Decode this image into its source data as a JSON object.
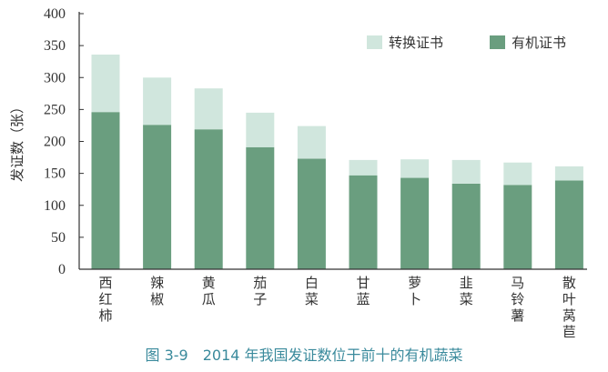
{
  "chart_data": {
    "type": "bar",
    "stacked": true,
    "title": "图 3-9　2014 年我国发证数位于前十的有机蔬菜",
    "xlabel": "",
    "ylabel": "发证数（张）",
    "ylim": [
      0,
      400
    ],
    "yticks": [
      0,
      50,
      100,
      150,
      200,
      250,
      300,
      350,
      400
    ],
    "grid": false,
    "legend_position": "top-right",
    "categories": [
      "西红柿",
      "辣椒",
      "黄瓜",
      "茄子",
      "白菜",
      "甘蓝",
      "萝卜",
      "韭菜",
      "马铃薯",
      "散叶莴苣"
    ],
    "series": [
      {
        "name": "有机证书",
        "color": "#6a9e7f",
        "values": [
          246,
          226,
          219,
          191,
          173,
          147,
          143,
          134,
          132,
          139
        ]
      },
      {
        "name": "转换证书",
        "color": "#d0e6dd",
        "values": [
          90,
          74,
          64,
          54,
          51,
          24,
          29,
          37,
          35,
          22
        ]
      }
    ],
    "legend_order": [
      "转换证书",
      "有机证书"
    ]
  }
}
